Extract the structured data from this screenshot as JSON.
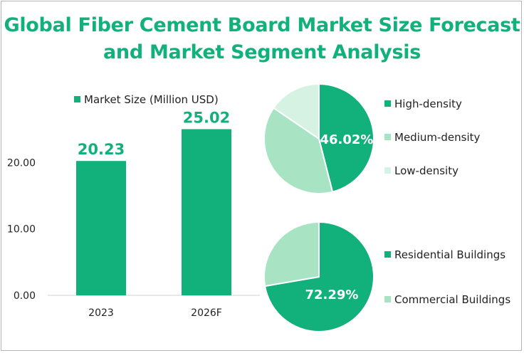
{
  "title_line1": "Global Fiber Cement Board Market Size Forecast",
  "title_line2": "and Market Segment Analysis",
  "colors": {
    "title": "#12b07a",
    "bar": "#12b07a",
    "dark_green": "#12b07a",
    "medium_green": "#a8e4c4",
    "light_green": "#d5f2e3"
  },
  "chart_data": [
    {
      "type": "bar",
      "legend": "Market Size (Million USD)",
      "categories": [
        "2023",
        "2026F"
      ],
      "values": [
        20.23,
        25.02
      ],
      "value_labels": [
        "20.23",
        "25.02"
      ],
      "ytick_labels": [
        "0.00",
        "10.00",
        "20.00"
      ],
      "yticks": [
        0,
        10,
        20
      ],
      "ylim": [
        0,
        30
      ],
      "grid": false
    },
    {
      "type": "pie",
      "labels": [
        "High-density",
        "Medium-density",
        "Low-density"
      ],
      "values": [
        46.02,
        38.5,
        15.48
      ],
      "shown_label": "46.02%",
      "colors": [
        "#12b07a",
        "#a8e4c4",
        "#d5f2e3"
      ],
      "legend_position": "right"
    },
    {
      "type": "pie",
      "labels": [
        "Residential Buildings",
        "Commercial Buildings"
      ],
      "values": [
        72.29,
        27.71
      ],
      "shown_label": "72.29%",
      "colors": [
        "#12b07a",
        "#a8e4c4"
      ],
      "legend_position": "right"
    }
  ]
}
